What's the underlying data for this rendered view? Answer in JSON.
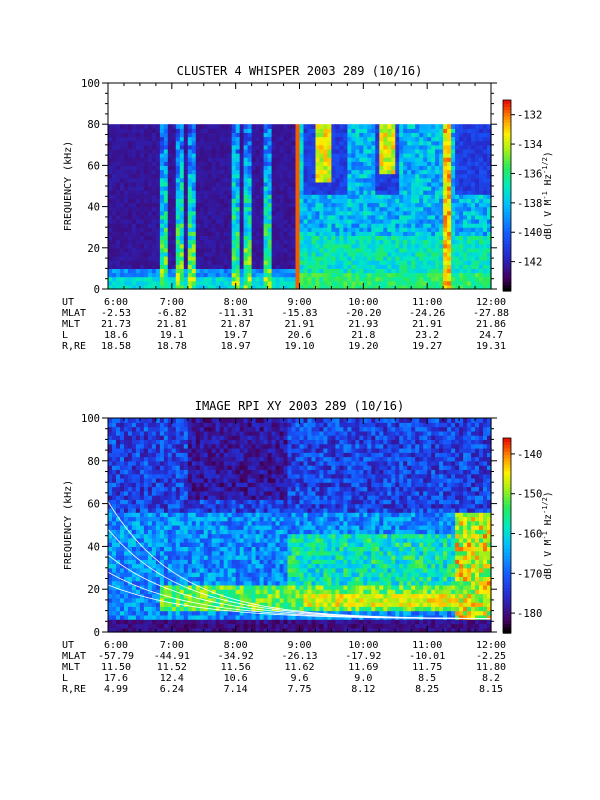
{
  "chart_data": [
    {
      "type": "heatmap",
      "title": "CLUSTER 4 WHISPER 2003 289 (10/16)",
      "ylabel": "FREQUENCY (kHz)",
      "xlim": [
        "6:00",
        "12:00"
      ],
      "ylim": [
        0,
        100
      ],
      "x_ticks": [
        "6:00",
        "7:00",
        "8:00",
        "9:00",
        "10:00",
        "11:00",
        "12:00"
      ],
      "y_ticks": [
        "0",
        "20",
        "40",
        "60",
        "80",
        "100"
      ],
      "data_frequency_max_khz": 80,
      "colorbar": {
        "label": "dB( V M⁻¹ Hz⁻¹ᐟ²)",
        "label_base": "dB( V M",
        "label_sup1": "-1",
        "label_mid": " Hz",
        "label_sup2": "-1/2",
        "label_end": ")",
        "ticks": [
          "-132",
          "-134",
          "-136",
          "-138",
          "-140",
          "-142"
        ],
        "range": [
          -144,
          -131
        ],
        "colormap": "rainbow"
      },
      "ephemeris": {
        "rows": [
          {
            "name": "UT",
            "values": [
              "6:00",
              "7:00",
              "8:00",
              "9:00",
              "10:00",
              "11:00",
              "12:00"
            ]
          },
          {
            "name": "MLAT",
            "values": [
              "-2.53",
              "-6.82",
              "-11.31",
              "-15.83",
              "-20.20",
              "-24.26",
              "-27.88"
            ]
          },
          {
            "name": "MLT",
            "values": [
              "21.73",
              "21.81",
              "21.87",
              "21.91",
              "21.93",
              "21.91",
              "21.86"
            ]
          },
          {
            "name": "L",
            "values": [
              "18.6",
              "19.1",
              "19.7",
              "20.6",
              "21.8",
              "23.2",
              "24.7"
            ]
          },
          {
            "name": "R,RE",
            "values": [
              "18.58",
              "18.78",
              "18.97",
              "19.10",
              "19.20",
              "19.27",
              "19.31"
            ]
          }
        ]
      }
    },
    {
      "type": "heatmap",
      "title": "IMAGE RPI XY 2003 289 (10/16)",
      "ylabel": "FREQUENCY (kHz)",
      "xlim": [
        "6:00",
        "12:00"
      ],
      "ylim": [
        0,
        100
      ],
      "x_ticks": [
        "6:00",
        "7:00",
        "8:00",
        "9:00",
        "10:00",
        "11:00",
        "12:00"
      ],
      "y_ticks": [
        "0",
        "20",
        "40",
        "60",
        "80",
        "100"
      ],
      "colorbar": {
        "label": "dB( V M⁻¹ Hz⁻¹ᐟ²)",
        "label_base": "dB( V M",
        "label_sup1": "-1",
        "label_mid": " Hz",
        "label_sup2": "-1/2",
        "label_end": ")",
        "ticks": [
          "-140",
          "-150",
          "-160",
          "-170",
          "-180"
        ],
        "range": [
          -185,
          -136
        ],
        "colormap": "rainbow"
      },
      "ephemeris": {
        "rows": [
          {
            "name": "UT",
            "values": [
              "6:00",
              "7:00",
              "8:00",
              "9:00",
              "10:00",
              "11:00",
              "12:00"
            ]
          },
          {
            "name": "MLAT",
            "values": [
              "-57.79",
              "-44.91",
              "-34.92",
              "-26.13",
              "-17.92",
              "-10.01",
              "-2.25"
            ]
          },
          {
            "name": "MLT",
            "values": [
              "11.50",
              "11.52",
              "11.56",
              "11.62",
              "11.69",
              "11.75",
              "11.80"
            ]
          },
          {
            "name": "L",
            "values": [
              "17.6",
              "12.4",
              "10.6",
              "9.6",
              "9.0",
              "8.5",
              "8.2"
            ]
          },
          {
            "name": "R,RE",
            "values": [
              "4.99",
              "6.24",
              "7.14",
              "7.75",
              "8.12",
              "8.25",
              "8.15"
            ]
          }
        ]
      }
    }
  ]
}
